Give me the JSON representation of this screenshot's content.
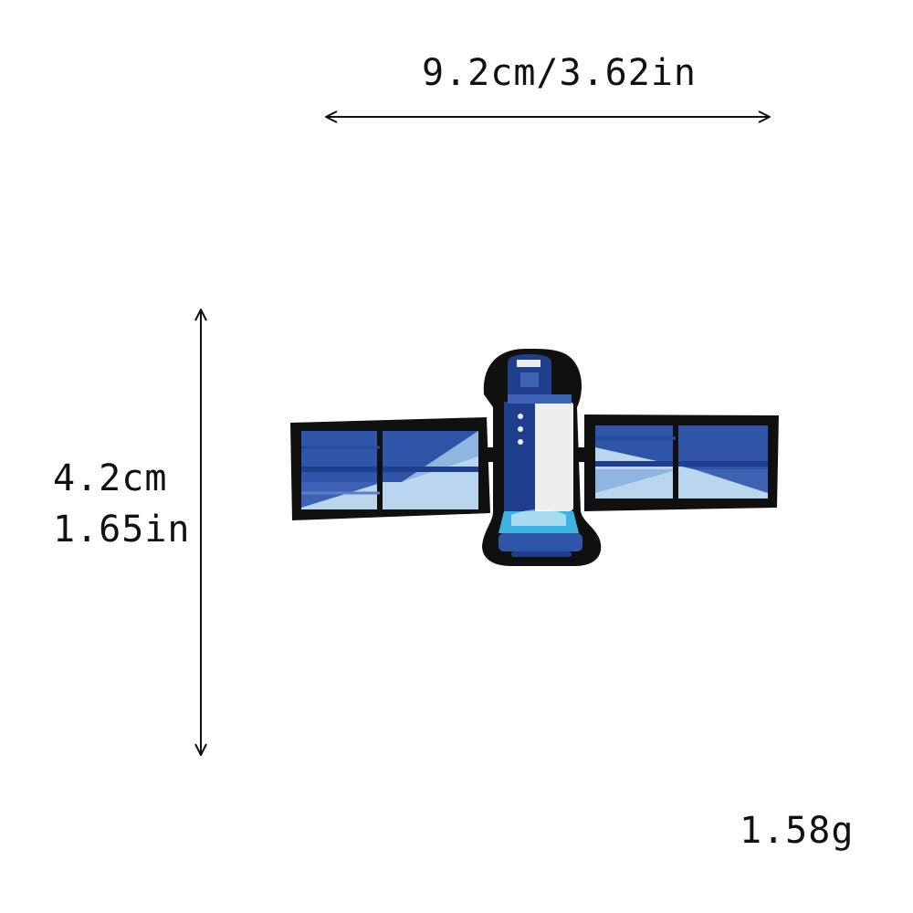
{
  "dimensions": {
    "width_label": "9.2cm/3.62in",
    "height_label_cm": "4.2cm",
    "height_label_in": "1.65in",
    "weight_label": "1.58g"
  },
  "product": {
    "icon": "satellite-patch-icon",
    "colors": {
      "outline": "#101010",
      "dark_blue": "#1f3f8c",
      "mid_blue": "#3d62b4",
      "light_blue": "#b9d6ee",
      "white_stitch": "#eeeef0",
      "accent_cyan": "#3fb2e0"
    }
  }
}
